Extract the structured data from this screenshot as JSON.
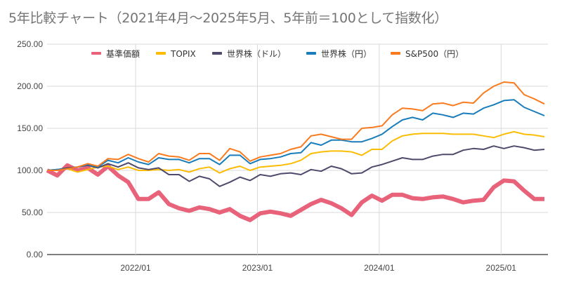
{
  "chart_data": {
    "type": "line",
    "title": "5年比較チャート（2021年4月〜2025年5月、5年前＝100として指数化）",
    "xlabel": "",
    "ylabel": "",
    "ylim": [
      0,
      250
    ],
    "yticks": [
      "0.00",
      "50.00",
      "100.00",
      "150.00",
      "200.00",
      "250.00"
    ],
    "ytick_values": [
      0,
      50,
      100,
      150,
      200,
      250
    ],
    "x_start": "2021/04",
    "x_count": 50,
    "xticks": [
      {
        "label": "2022/01",
        "index": 9
      },
      {
        "label": "2023/01",
        "index": 21
      },
      {
        "label": "2024/01",
        "index": 33
      },
      {
        "label": "2025/01",
        "index": 45
      }
    ],
    "grid": true,
    "legend_position": "top",
    "series": [
      {
        "name": "基準価額",
        "color": "#e8627a",
        "width": 6,
        "values": [
          100,
          94,
          106,
          100,
          103,
          95,
          105,
          94,
          86,
          66,
          66,
          74,
          60,
          55,
          52,
          56,
          54,
          50,
          54,
          46,
          41,
          49,
          51,
          49,
          46,
          53,
          60,
          65,
          61,
          55,
          47,
          62,
          70,
          64,
          71,
          71,
          67,
          66,
          68,
          69,
          66,
          62,
          64,
          65,
          80,
          88,
          87,
          76,
          66,
          66
        ]
      },
      {
        "name": "TOPIX",
        "color": "#fbbc04",
        "width": 2,
        "values": [
          100,
          100,
          102,
          98,
          101,
          104,
          105,
          101,
          104,
          100,
          100,
          101,
          100,
          101,
          98,
          102,
          104,
          97,
          102,
          105,
          100,
          104,
          105,
          106,
          108,
          112,
          120,
          122,
          123,
          123,
          122,
          118,
          125,
          125,
          135,
          141,
          143,
          144,
          144,
          144,
          143,
          143,
          143,
          141,
          139,
          143,
          146,
          143,
          142,
          140
        ]
      },
      {
        "name": "世界株（ドル）",
        "color": "#4e4a6b",
        "width": 2,
        "values": [
          100,
          101,
          103,
          104,
          106,
          103,
          108,
          104,
          109,
          103,
          101,
          103,
          95,
          95,
          87,
          93,
          90,
          81,
          86,
          92,
          88,
          95,
          93,
          96,
          97,
          95,
          101,
          99,
          105,
          102,
          96,
          97,
          104,
          107,
          111,
          115,
          113,
          113,
          117,
          119,
          119,
          124,
          126,
          125,
          129,
          126,
          129,
          127,
          124,
          125
        ]
      },
      {
        "name": "世界株（円）",
        "color": "#1a7db9",
        "width": 2,
        "values": [
          100,
          101,
          102,
          104,
          107,
          104,
          112,
          109,
          115,
          110,
          107,
          115,
          113,
          113,
          109,
          114,
          114,
          107,
          118,
          118,
          108,
          113,
          114,
          116,
          120,
          121,
          133,
          130,
          136,
          136,
          134,
          134,
          138,
          143,
          152,
          160,
          163,
          160,
          168,
          166,
          163,
          168,
          167,
          174,
          178,
          183,
          184,
          175,
          170,
          165
        ]
      },
      {
        "name": "S&P500（円）",
        "color": "#fa7a1e",
        "width": 2,
        "values": [
          100,
          100,
          102,
          104,
          108,
          105,
          114,
          113,
          119,
          114,
          110,
          120,
          117,
          116,
          112,
          120,
          120,
          112,
          126,
          122,
          111,
          116,
          118,
          120,
          125,
          128,
          141,
          143,
          140,
          137,
          137,
          150,
          151,
          153,
          166,
          174,
          173,
          171,
          179,
          180,
          177,
          181,
          180,
          192,
          200,
          205,
          204,
          190,
          185,
          179
        ]
      }
    ]
  }
}
